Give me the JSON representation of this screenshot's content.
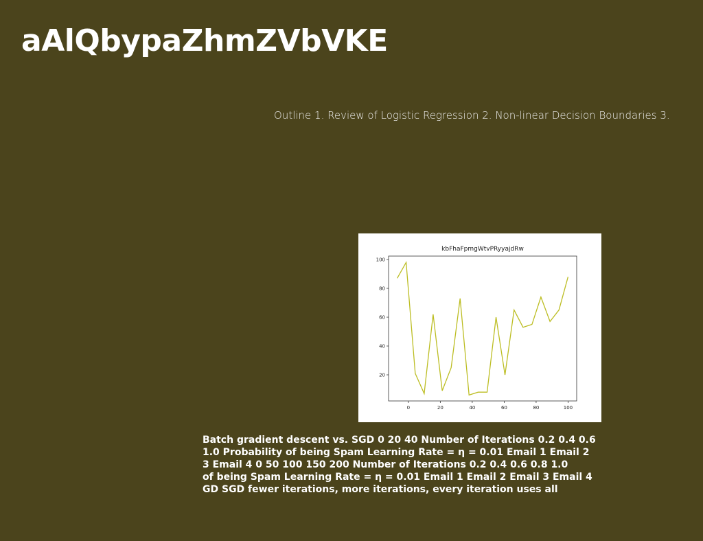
{
  "title": "aAlQbypaZhmZVbVKE",
  "outline": "Outline 1. Review of Logistic Regression 2. Non-linear Decision Boundaries 3.",
  "body_lines": [
    "Batch gradient descent vs. SGD 0 20 40 Number of Iterations 0.2 0.4 0.6",
    "1.0 Probability of being Spam Learning Rate = η = 0.01 Email 1 Email 2",
    "3 Email 4 0 50 100 150 200 Number of Iterations 0.2 0.4 0.6 0.8 1.0",
    "of being Spam Learning Rate = η = 0.01 Email 1 Email 2 Email 3 Email 4",
    "GD SGD fewer iterations, more iterations, every iteration uses all"
  ],
  "chart_data": {
    "type": "line",
    "title": "kbFhaFpmgWtvPRyyajdRw",
    "x": [
      -7,
      -1.4,
      4.3,
      9.9,
      15.5,
      21.2,
      26.8,
      32.4,
      38,
      43.7,
      49.3,
      54.9,
      60.5,
      66.2,
      71.8,
      77.4,
      83,
      88.7,
      94.3,
      100
    ],
    "values": [
      87,
      98,
      21,
      7,
      62,
      9,
      25,
      73,
      6,
      8,
      8,
      60,
      20,
      65,
      53,
      55,
      74,
      57,
      65,
      88
    ],
    "color": "#bcbd22",
    "xlim": [
      -12.4,
      105.4
    ],
    "ylim": [
      1.9,
      102.4
    ],
    "xticks": [
      0,
      20,
      40,
      60,
      80,
      100
    ],
    "yticks": [
      20,
      40,
      60,
      80,
      100
    ]
  }
}
